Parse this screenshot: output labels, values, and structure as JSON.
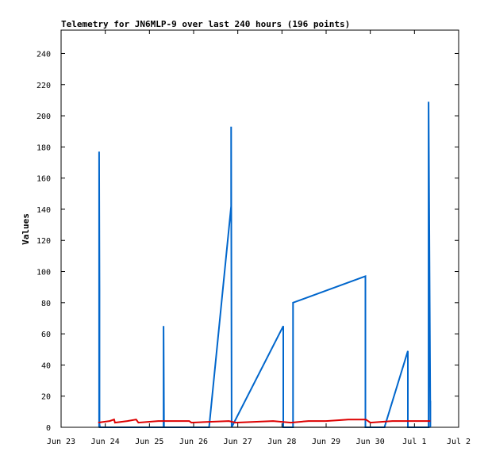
{
  "chart_data": {
    "type": "line",
    "title": "Telemetry for JN6MLP-9 over last 240 hours (196 points)",
    "xlabel": "",
    "ylabel": "Values",
    "x_ticks": [
      "Jun 23",
      "Jun 24",
      "Jun 25",
      "Jun 26",
      "Jun 27",
      "Jun 28",
      "Jun 29",
      "Jun 30",
      "Jul 1",
      "Jul 2"
    ],
    "xlim": [
      0,
      9
    ],
    "x_unit": "days since Jun 23",
    "y_ticks": [
      0,
      20,
      40,
      60,
      80,
      100,
      120,
      140,
      160,
      180,
      200,
      220,
      240
    ],
    "ylim": [
      0,
      255
    ],
    "grid": false,
    "legend": "none",
    "series": [
      {
        "color": "#0066cc",
        "x": [
          0.86,
          0.86,
          0.87,
          0.87,
          0.88,
          2.32,
          2.32,
          2.33,
          3.35,
          3.85,
          3.85,
          3.86,
          3.86,
          5.03,
          5.03,
          5.25,
          5.25,
          6.89,
          6.89,
          7.32,
          7.32,
          7.85,
          7.85,
          8.32,
          8.32,
          8.36,
          8.36
        ],
        "y": [
          0,
          177,
          88,
          2,
          0,
          0,
          65,
          0,
          0,
          142,
          193,
          0,
          0,
          65,
          0,
          0,
          80,
          97,
          0,
          0,
          0,
          49,
          0,
          0,
          209,
          0,
          17
        ]
      },
      {
        "color": "#dd0000",
        "x": [
          0.84,
          1.1,
          1.2,
          1.22,
          1.5,
          1.7,
          1.75,
          2.2,
          2.9,
          2.95,
          3.8,
          3.95,
          4.8,
          5.2,
          5.6,
          6.0,
          6.5,
          6.9,
          7.0,
          7.5,
          7.9,
          8.2,
          8.36
        ],
        "y": [
          3,
          4,
          5,
          3,
          4,
          5,
          3,
          4,
          4,
          3,
          4,
          3,
          4,
          3,
          4,
          4,
          5,
          5,
          3,
          4,
          4,
          4,
          4
        ]
      },
      {
        "color": "#000000",
        "x": [
          0.84,
          8.36
        ],
        "y": [
          0,
          0
        ]
      }
    ]
  }
}
